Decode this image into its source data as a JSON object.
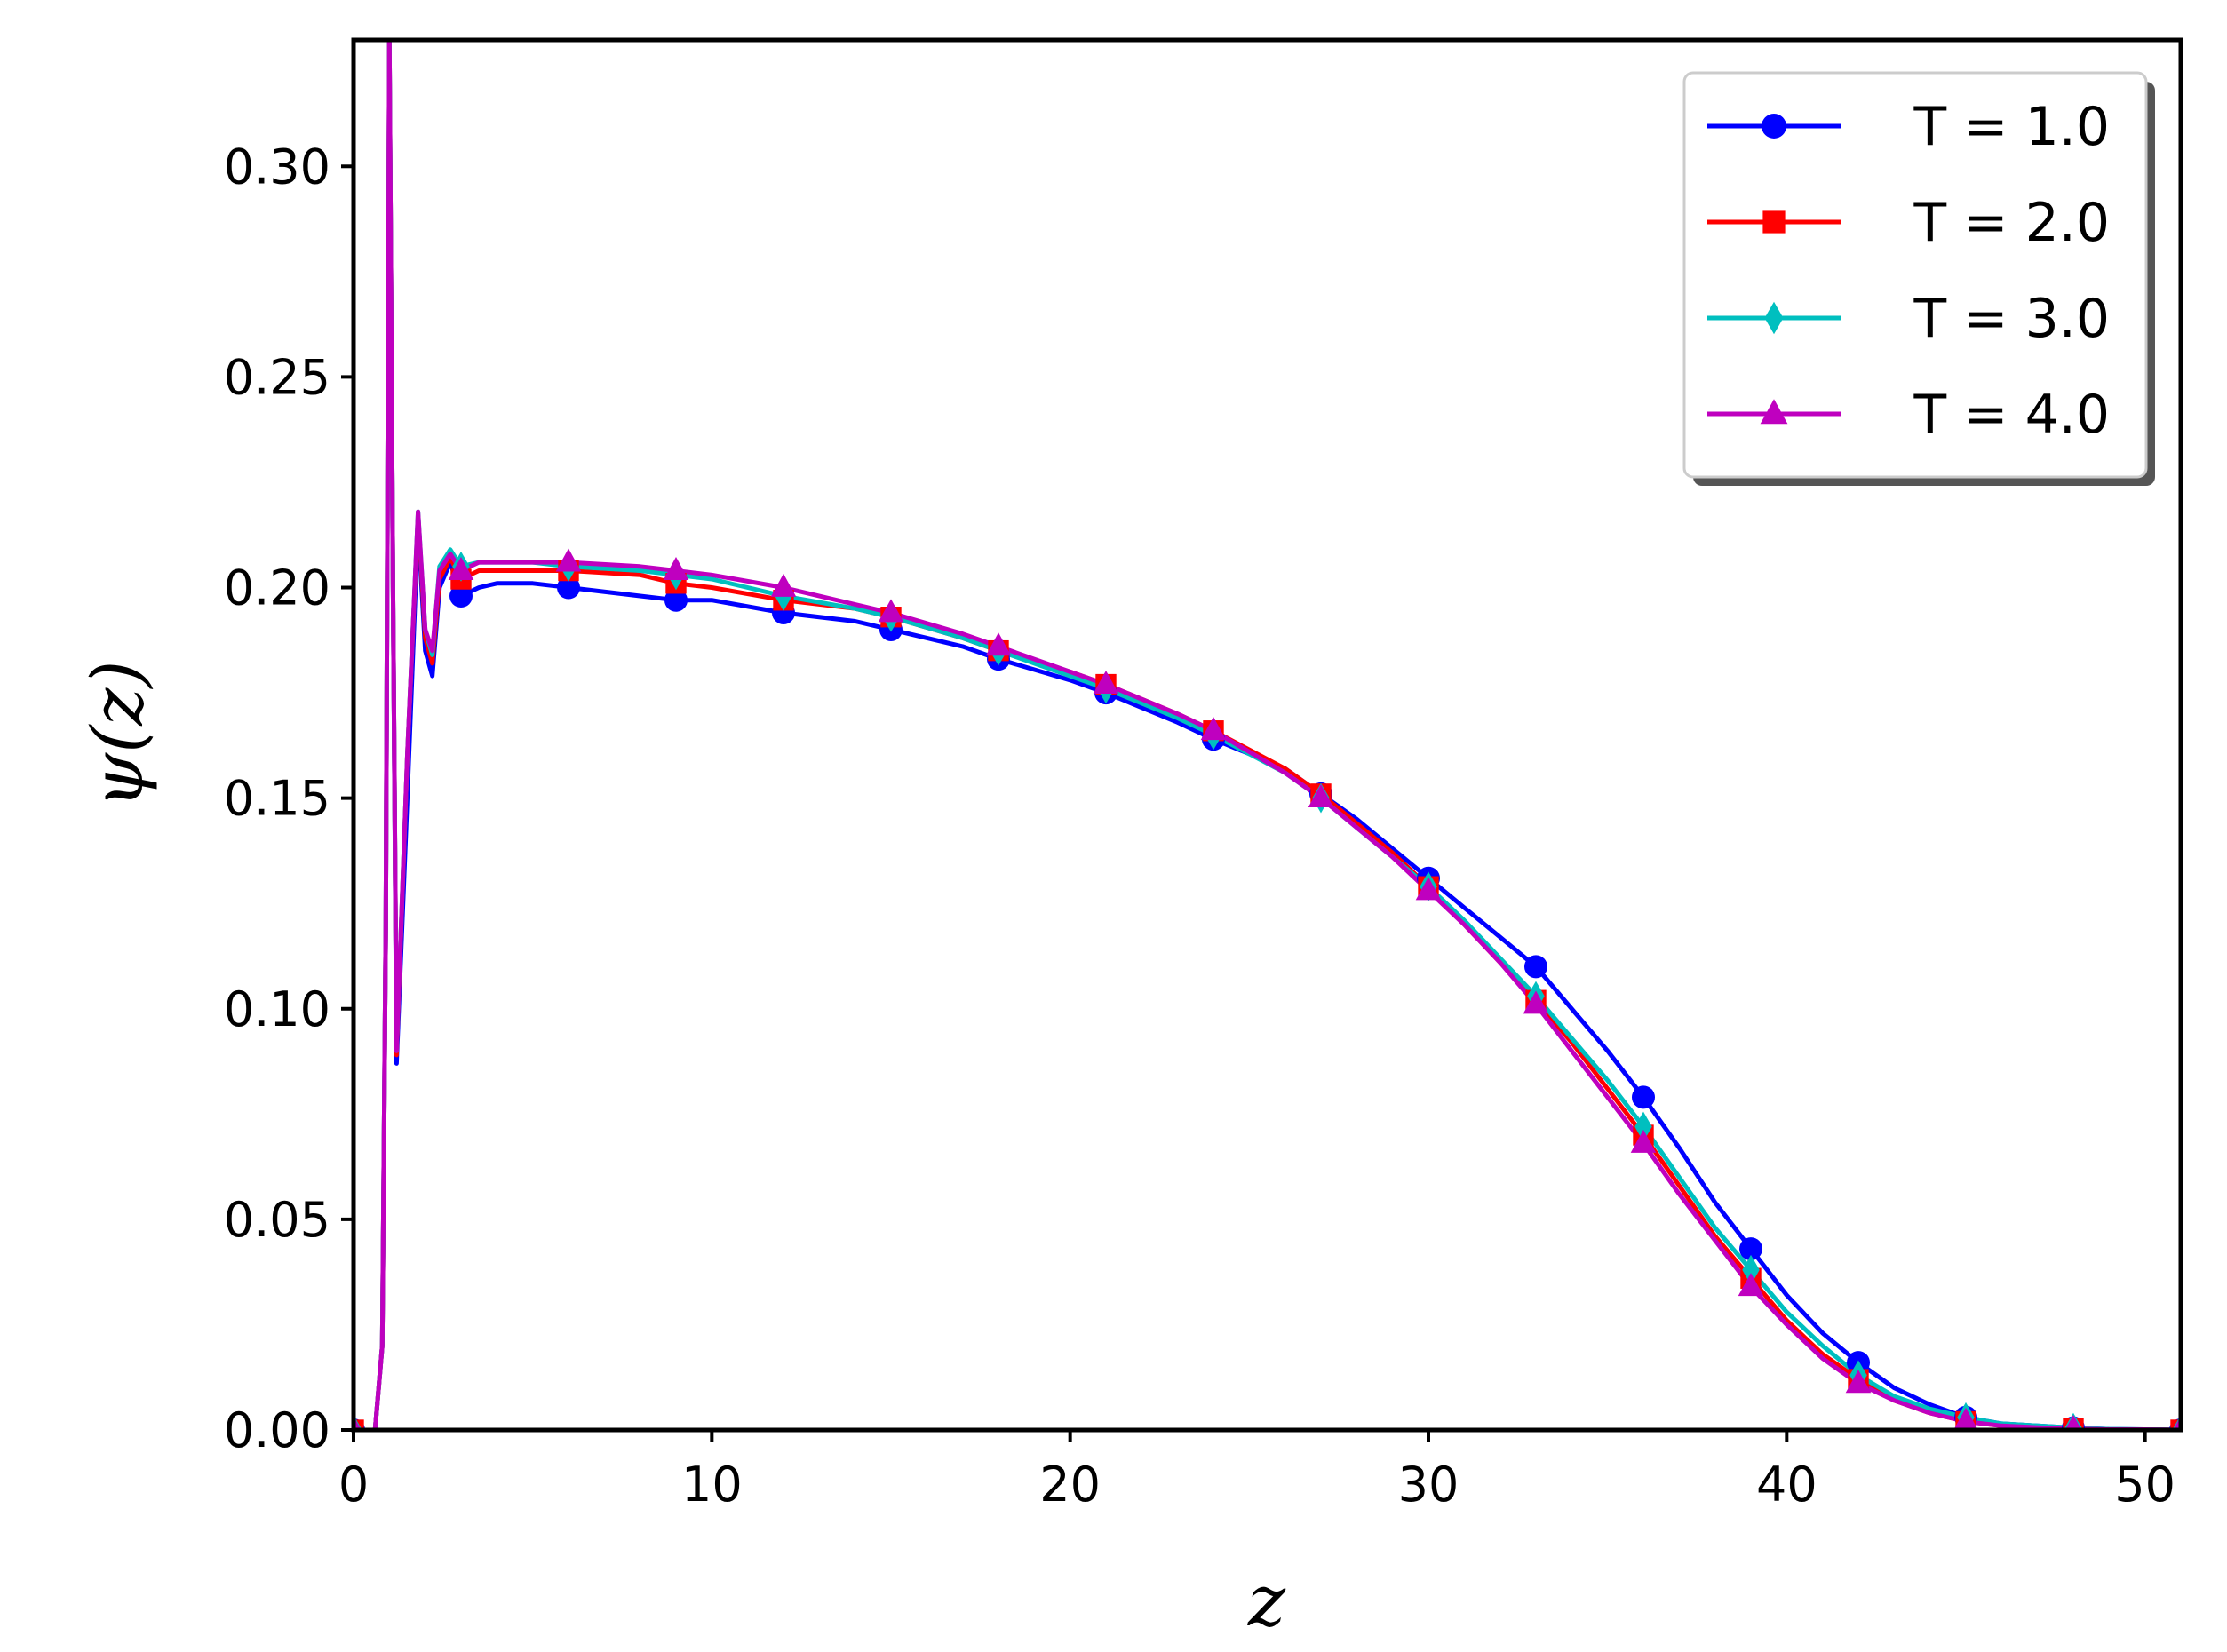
{
  "chart_data": {
    "type": "line",
    "title": "",
    "xlabel": "z",
    "ylabel": "ψ(z)",
    "xlim": [
      0,
      51
    ],
    "ylim": [
      0,
      0.33
    ],
    "xticks": [
      0,
      10,
      20,
      30,
      40,
      50
    ],
    "xtick_labels": [
      "0",
      "10",
      "20",
      "30",
      "40",
      "50"
    ],
    "yticks": [
      0.0,
      0.05,
      0.1,
      0.15,
      0.2,
      0.25,
      0.3
    ],
    "ytick_labels": [
      "0.00",
      "0.05",
      "0.10",
      "0.15",
      "0.20",
      "0.25",
      "0.30"
    ],
    "grid": false,
    "legend_position": "top-right",
    "series": [
      {
        "name": "T = 1.0",
        "color": "#0000ff",
        "marker": "circle",
        "x": [
          0,
          0.3,
          0.6,
          0.8,
          0.9,
          1.0,
          1.1,
          1.2,
          1.5,
          1.8,
          2.0,
          2.2,
          2.4,
          2.7,
          3.0,
          3.5,
          4,
          5,
          6,
          8,
          9,
          10,
          12,
          14,
          15,
          17,
          18,
          20,
          21,
          23,
          24,
          26,
          27,
          28,
          29,
          30,
          31,
          32,
          33,
          34,
          35,
          36,
          37,
          38,
          39,
          40,
          41,
          42,
          43,
          44,
          45,
          46,
          47,
          48,
          49,
          50,
          51
        ],
        "y": [
          0,
          0,
          0,
          0.02,
          0.12,
          0.33,
          0.2,
          0.087,
          0.15,
          0.215,
          0.185,
          0.179,
          0.2,
          0.206,
          0.198,
          0.2,
          0.201,
          0.201,
          0.2,
          0.198,
          0.197,
          0.197,
          0.194,
          0.192,
          0.19,
          0.186,
          0.183,
          0.178,
          0.175,
          0.168,
          0.164,
          0.157,
          0.151,
          0.145,
          0.138,
          0.131,
          0.124,
          0.117,
          0.11,
          0.1,
          0.09,
          0.079,
          0.067,
          0.054,
          0.043,
          0.032,
          0.023,
          0.016,
          0.01,
          0.006,
          0.003,
          0.0015,
          0.001,
          0.0005,
          0.0002,
          0.0001,
          0
        ]
      },
      {
        "name": "T = 2.0",
        "color": "#ff0000",
        "marker": "square",
        "x": [
          0,
          0.3,
          0.6,
          0.8,
          0.9,
          1.0,
          1.1,
          1.2,
          1.5,
          1.8,
          2.0,
          2.2,
          2.4,
          2.7,
          3.0,
          3.5,
          4,
          5,
          6,
          8,
          9,
          10,
          12,
          14,
          15,
          17,
          18,
          20,
          21,
          23,
          24,
          26,
          27,
          28,
          29,
          30,
          31,
          32,
          33,
          34,
          35,
          36,
          37,
          38,
          39,
          40,
          41,
          42,
          43,
          44,
          45,
          46,
          47,
          48,
          49,
          50,
          51
        ],
        "y": [
          0,
          0,
          0,
          0.02,
          0.12,
          0.33,
          0.2,
          0.089,
          0.16,
          0.217,
          0.188,
          0.182,
          0.202,
          0.207,
          0.202,
          0.204,
          0.204,
          0.204,
          0.204,
          0.203,
          0.201,
          0.2,
          0.197,
          0.195,
          0.193,
          0.188,
          0.185,
          0.18,
          0.177,
          0.17,
          0.166,
          0.157,
          0.151,
          0.144,
          0.137,
          0.129,
          0.12,
          0.111,
          0.102,
          0.092,
          0.081,
          0.07,
          0.058,
          0.046,
          0.036,
          0.026,
          0.018,
          0.012,
          0.007,
          0.004,
          0.002,
          0.001,
          0.0006,
          0.0003,
          0.0001,
          0.0001,
          0
        ]
      },
      {
        "name": "T = 3.0",
        "color": "#00bfbf",
        "marker": "thin_diamond",
        "x": [
          0,
          0.3,
          0.6,
          0.8,
          0.9,
          1.0,
          1.1,
          1.2,
          1.5,
          1.8,
          2.0,
          2.2,
          2.4,
          2.7,
          3.0,
          3.5,
          4,
          5,
          6,
          8,
          9,
          10,
          12,
          14,
          15,
          17,
          18,
          20,
          21,
          23,
          24,
          26,
          27,
          28,
          29,
          30,
          31,
          32,
          33,
          34,
          35,
          36,
          37,
          38,
          39,
          40,
          41,
          42,
          43,
          44,
          45,
          46,
          47,
          48,
          49,
          50,
          51
        ],
        "y": [
          0,
          0,
          0,
          0.02,
          0.12,
          0.33,
          0.2,
          0.09,
          0.16,
          0.218,
          0.19,
          0.184,
          0.205,
          0.209,
          0.205,
          0.206,
          0.206,
          0.206,
          0.205,
          0.204,
          0.203,
          0.202,
          0.198,
          0.195,
          0.193,
          0.188,
          0.185,
          0.179,
          0.176,
          0.169,
          0.165,
          0.156,
          0.15,
          0.143,
          0.136,
          0.129,
          0.121,
          0.112,
          0.103,
          0.093,
          0.083,
          0.072,
          0.06,
          0.048,
          0.038,
          0.028,
          0.02,
          0.013,
          0.008,
          0.005,
          0.003,
          0.0015,
          0.001,
          0.0005,
          0.0002,
          0.0001,
          0
        ]
      },
      {
        "name": "T = 4.0",
        "color": "#bf00bf",
        "marker": "triangle",
        "x": [
          0,
          0.3,
          0.6,
          0.8,
          0.9,
          1.0,
          1.1,
          1.2,
          1.5,
          1.8,
          2.0,
          2.2,
          2.4,
          2.7,
          3.0,
          3.5,
          4,
          5,
          6,
          8,
          9,
          10,
          12,
          14,
          15,
          17,
          18,
          20,
          21,
          23,
          24,
          26,
          27,
          28,
          29,
          30,
          31,
          32,
          33,
          34,
          35,
          36,
          37,
          38,
          39,
          40,
          41,
          42,
          43,
          44,
          45,
          46,
          47,
          48,
          49,
          50,
          51
        ],
        "y": [
          0,
          0,
          0,
          0.02,
          0.12,
          0.33,
          0.2,
          0.09,
          0.16,
          0.218,
          0.19,
          0.185,
          0.204,
          0.208,
          0.204,
          0.206,
          0.206,
          0.206,
          0.206,
          0.205,
          0.204,
          0.203,
          0.2,
          0.196,
          0.194,
          0.189,
          0.186,
          0.18,
          0.177,
          0.17,
          0.166,
          0.156,
          0.15,
          0.143,
          0.136,
          0.128,
          0.12,
          0.111,
          0.101,
          0.09,
          0.079,
          0.068,
          0.056,
          0.045,
          0.034,
          0.025,
          0.017,
          0.011,
          0.007,
          0.004,
          0.002,
          0.001,
          0.0006,
          0.0003,
          0.0001,
          0.0001,
          0
        ]
      }
    ],
    "marker_x": [
      0,
      3,
      6,
      9,
      12,
      15,
      18,
      21,
      24,
      27,
      30,
      33,
      36,
      39,
      42,
      45,
      48,
      51
    ]
  }
}
